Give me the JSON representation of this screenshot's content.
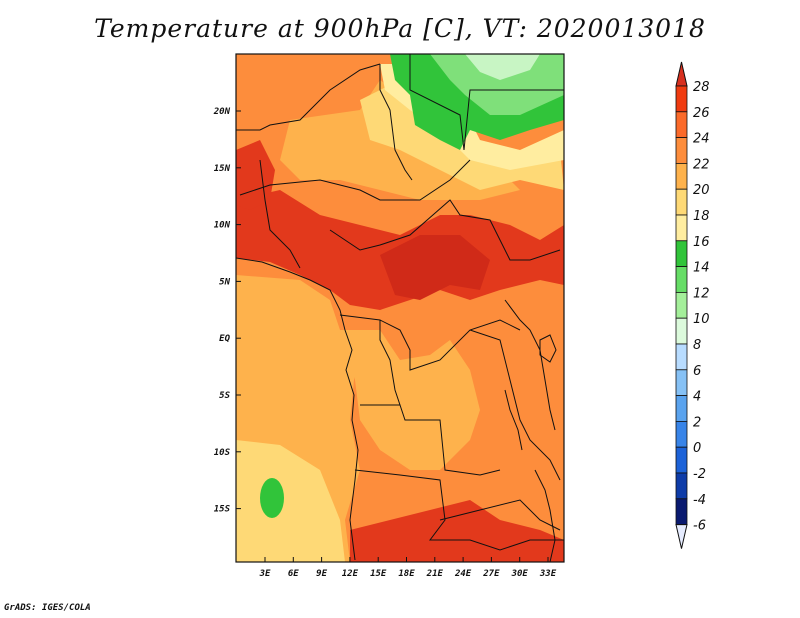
{
  "title": "Temperature at 900hPa [C], VT: 2020013018",
  "credit": "GrADS: IGES/COLA",
  "map": {
    "lon_ticks": [
      "3E",
      "6E",
      "9E",
      "12E",
      "15E",
      "18E",
      "21E",
      "24E",
      "27E",
      "30E",
      "33E"
    ],
    "lat_ticks": [
      "20N",
      "15N",
      "10N",
      "5N",
      "EQ",
      "5S",
      "10S",
      "15S"
    ]
  },
  "colorbar": {
    "levels": [
      "28",
      "26",
      "24",
      "22",
      "20",
      "18",
      "16",
      "14",
      "12",
      "10",
      "8",
      "6",
      "4",
      "2",
      "0",
      "-2",
      "-4",
      "-6"
    ],
    "colors": [
      "#d7301f",
      "#f03b10",
      "#fb6a2a",
      "#fd8d3c",
      "#feb24c",
      "#fed976",
      "#ffeda0",
      "#31c43a",
      "#66dd66",
      "#a4ef9a",
      "#dcfadc",
      "#b8dcff",
      "#86c1f5",
      "#5aa3ee",
      "#3884e8",
      "#1c62d8",
      "#0e3ca8",
      "#0a1a70",
      "#e6ecff"
    ]
  },
  "colors": {
    "warm_base": "#fd8d3c",
    "hot": "#e2391c",
    "mild": "#feb24c",
    "cool": "#fed976",
    "coolest_yellow": "#ffeda0",
    "green": "#31c43a",
    "light_green": "#7fe07a",
    "pale_green": "#c8f5c4",
    "boundary": "#111111"
  }
}
